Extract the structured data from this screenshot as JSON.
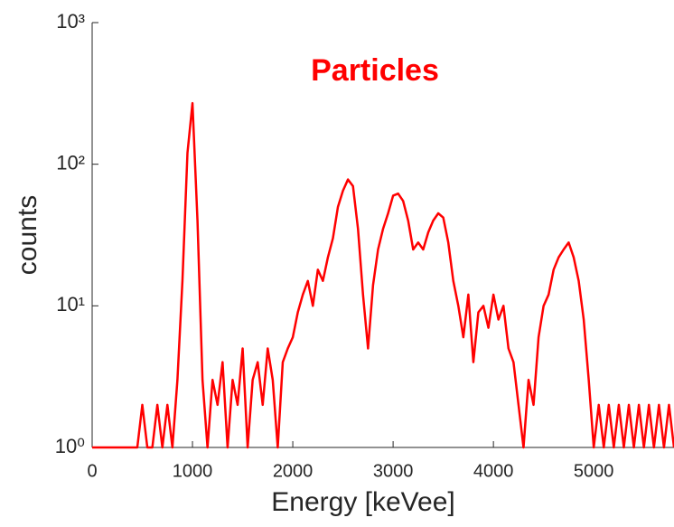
{
  "chart_data": {
    "type": "line",
    "title": "Particles",
    "title_color": "#ff0000",
    "xlabel": "Energy [keVee]",
    "ylabel": "counts",
    "xlim": [
      0,
      5800
    ],
    "xticks": [
      0,
      1000,
      2000,
      3000,
      4000,
      5000
    ],
    "ylim": [
      1,
      1000
    ],
    "log_y": true,
    "yticks": [
      {
        "value": 1,
        "label": "10⁰"
      },
      {
        "value": 10,
        "label": "10¹"
      },
      {
        "value": 100,
        "label": "10²"
      },
      {
        "value": 1000,
        "label": "10³"
      }
    ],
    "grid": false,
    "series": [
      {
        "name": "Particles",
        "color": "#ff0000",
        "x": [
          0,
          50,
          100,
          150,
          200,
          250,
          300,
          350,
          400,
          450,
          500,
          550,
          600,
          650,
          700,
          750,
          800,
          850,
          900,
          950,
          1000,
          1050,
          1100,
          1150,
          1200,
          1250,
          1300,
          1350,
          1400,
          1450,
          1500,
          1550,
          1600,
          1650,
          1700,
          1750,
          1800,
          1850,
          1900,
          1950,
          2000,
          2050,
          2100,
          2150,
          2200,
          2250,
          2300,
          2350,
          2400,
          2450,
          2500,
          2550,
          2600,
          2650,
          2700,
          2750,
          2800,
          2850,
          2900,
          2950,
          3000,
          3050,
          3100,
          3150,
          3200,
          3250,
          3300,
          3350,
          3400,
          3450,
          3500,
          3550,
          3600,
          3650,
          3700,
          3750,
          3800,
          3850,
          3900,
          3950,
          4000,
          4050,
          4100,
          4150,
          4200,
          4250,
          4300,
          4350,
          4400,
          4450,
          4500,
          4550,
          4600,
          4650,
          4700,
          4750,
          4800,
          4850,
          4900,
          4950,
          5000,
          5050,
          5100,
          5150,
          5200,
          5250,
          5300,
          5350,
          5400,
          5450,
          5500,
          5550,
          5600,
          5650,
          5700,
          5750,
          5800
        ],
        "values": [
          1,
          1,
          1,
          1,
          1,
          1,
          1,
          1,
          1,
          1,
          2,
          1,
          1,
          2,
          1,
          2,
          1,
          3,
          15,
          120,
          270,
          40,
          3,
          1,
          3,
          2,
          4,
          1,
          3,
          2,
          5,
          1,
          3,
          4,
          2,
          5,
          3,
          1,
          4,
          5,
          6,
          9,
          12,
          15,
          10,
          18,
          15,
          22,
          30,
          50,
          65,
          78,
          70,
          35,
          12,
          5,
          14,
          25,
          35,
          45,
          60,
          62,
          55,
          40,
          25,
          28,
          25,
          33,
          40,
          45,
          42,
          28,
          15,
          10,
          6,
          12,
          4,
          9,
          10,
          7,
          12,
          8,
          10,
          5,
          4,
          2,
          1,
          3,
          2,
          6,
          10,
          12,
          18,
          22,
          25,
          28,
          22,
          15,
          8,
          3,
          1,
          2,
          1,
          2,
          1,
          2,
          1,
          2,
          1,
          2,
          1,
          2,
          1,
          2,
          1,
          2,
          1
        ]
      }
    ]
  }
}
